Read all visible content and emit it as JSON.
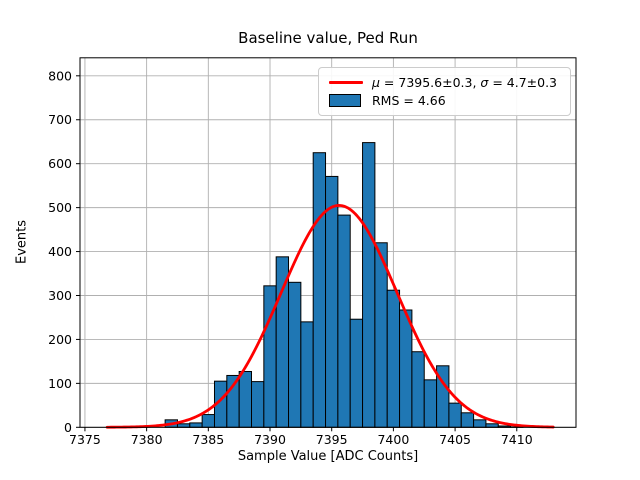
{
  "figure": {
    "title": "Baseline value, Ped Run",
    "xlabel": "Sample Value [ADC Counts]",
    "ylabel": "Events",
    "background_color": "#ffffff"
  },
  "chart_data": {
    "type": "histogram",
    "title": "Baseline value, Ped Run",
    "xlabel": "Sample Value [ADC Counts]",
    "ylabel": "Events",
    "xlim": [
      7374.6,
      7414.8
    ],
    "ylim": [
      0,
      841
    ],
    "xticks": [
      7375,
      7380,
      7385,
      7390,
      7395,
      7400,
      7405,
      7410
    ],
    "yticks": [
      0,
      100,
      200,
      300,
      400,
      500,
      600,
      700,
      800
    ],
    "grid": true,
    "grid_color": "#b0b0b0",
    "bar_color": "#1f77b4",
    "bar_edge_color": "#000000",
    "bin_width": 1,
    "bin_centers": [
      7382,
      7383,
      7384,
      7385,
      7386,
      7387,
      7388,
      7389,
      7390,
      7391,
      7392,
      7393,
      7394,
      7395,
      7396,
      7397,
      7398,
      7399,
      7400,
      7401,
      7402,
      7403,
      7404,
      7405,
      7406,
      7407,
      7408,
      7409,
      7410
    ],
    "counts": [
      17,
      8,
      10,
      29,
      105,
      118,
      127,
      104,
      322,
      388,
      330,
      240,
      625,
      571,
      483,
      246,
      648,
      420,
      312,
      267,
      172,
      108,
      140,
      55,
      33,
      17,
      8,
      3,
      1
    ],
    "fit_curve": {
      "type": "gaussian",
      "mu": 7395.6,
      "sigma": 4.7,
      "amplitude": 505,
      "x_start": 7376.8,
      "x_end": 7413.0,
      "color": "#ff0000",
      "linewidth": 2.8
    },
    "legend": {
      "position": "upper right",
      "entries": [
        {
          "swatch": "line",
          "color": "#ff0000",
          "label": "μ = 7395.6±0.3, σ = 4.7±0.3"
        },
        {
          "swatch": "patch",
          "color": "#1f77b4",
          "label": "RMS = 4.66"
        }
      ]
    }
  }
}
